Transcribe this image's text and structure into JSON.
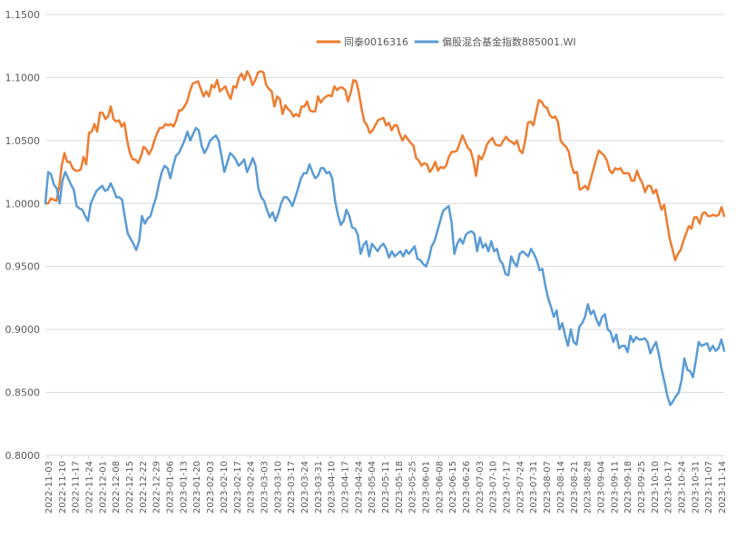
{
  "chart_data": {
    "type": "line",
    "ylim": [
      0.8,
      1.15
    ],
    "yticks": [
      "0.8000",
      "0.8500",
      "0.9000",
      "0.9500",
      "1.0000",
      "1.0500",
      "1.1000",
      "1.1500"
    ],
    "grid": true,
    "legend_position": "top-center",
    "xtick_labels": [
      "2022-11-03",
      "2022-11-10",
      "2022-11-17",
      "2022-11-24",
      "2022-12-01",
      "2022-12-08",
      "2022-12-15",
      "2022-12-22",
      "2022-12-29",
      "2023-01-06",
      "2023-01-13",
      "2023-01-20",
      "2023-02-03",
      "2023-02-10",
      "2023-02-17",
      "2023-02-24",
      "2023-03-03",
      "2023-03-10",
      "2023-03-17",
      "2023-03-24",
      "2023-03-31",
      "2023-04-10",
      "2023-04-17",
      "2023-04-24",
      "2023-05-04",
      "2023-05-11",
      "2023-05-18",
      "2023-05-25",
      "2023-06-01",
      "2023-06-08",
      "2023-06-15",
      "2023-06-26",
      "2023-07-03",
      "2023-07-10",
      "2023-07-17",
      "2023-07-24",
      "2023-07-31",
      "2023-08-07",
      "2023-08-14",
      "2023-08-21",
      "2023-08-28",
      "2023-09-04",
      "2023-09-11",
      "2023-09-18",
      "2023-09-25",
      "2023-10-10",
      "2023-10-17",
      "2023-10-24",
      "2023-10-31",
      "2023-11-07",
      "2023-11-14"
    ],
    "series": [
      {
        "name": "同泰0016316",
        "color": "#ED7D31",
        "values": [
          1.0,
          1.0,
          1.004,
          1.003,
          1.002,
          1.012,
          1.03,
          1.04,
          1.033,
          1.033,
          1.028,
          1.026,
          1.026,
          1.027,
          1.037,
          1.031,
          1.056,
          1.057,
          1.063,
          1.057,
          1.072,
          1.072,
          1.067,
          1.069,
          1.077,
          1.067,
          1.065,
          1.066,
          1.061,
          1.064,
          1.05,
          1.04,
          1.035,
          1.035,
          1.032,
          1.037,
          1.045,
          1.043,
          1.039,
          1.043,
          1.05,
          1.056,
          1.06,
          1.06,
          1.063,
          1.062,
          1.063,
          1.061,
          1.066,
          1.074,
          1.074,
          1.077,
          1.081,
          1.089,
          1.095,
          1.096,
          1.097,
          1.091,
          1.085,
          1.089,
          1.085,
          1.094,
          1.092,
          1.098,
          1.089,
          1.091,
          1.093,
          1.087,
          1.083,
          1.093,
          1.092,
          1.1,
          1.103,
          1.098,
          1.105,
          1.101,
          1.094,
          1.098,
          1.104,
          1.105,
          1.104,
          1.094,
          1.091,
          1.089,
          1.077,
          1.085,
          1.083,
          1.071,
          1.078,
          1.075,
          1.073,
          1.069,
          1.071,
          1.069,
          1.077,
          1.077,
          1.081,
          1.074,
          1.073,
          1.073,
          1.085,
          1.08,
          1.083,
          1.085,
          1.086,
          1.085,
          1.093,
          1.09,
          1.092,
          1.092,
          1.09,
          1.081,
          1.088,
          1.098,
          1.097,
          1.088,
          1.075,
          1.065,
          1.062,
          1.056,
          1.058,
          1.062,
          1.066,
          1.067,
          1.068,
          1.062,
          1.064,
          1.058,
          1.062,
          1.062,
          1.055,
          1.05,
          1.054,
          1.051,
          1.048,
          1.046,
          1.036,
          1.034,
          1.03,
          1.032,
          1.031,
          1.025,
          1.028,
          1.033,
          1.026,
          1.029,
          1.028,
          1.03,
          1.037,
          1.041,
          1.041,
          1.042,
          1.048,
          1.054,
          1.049,
          1.044,
          1.042,
          1.034,
          1.022,
          1.038,
          1.035,
          1.04,
          1.047,
          1.05,
          1.052,
          1.047,
          1.046,
          1.046,
          1.05,
          1.053,
          1.05,
          1.049,
          1.047,
          1.05,
          1.042,
          1.04,
          1.05,
          1.064,
          1.065,
          1.062,
          1.072,
          1.082,
          1.081,
          1.077,
          1.076,
          1.07,
          1.068,
          1.069,
          1.065,
          1.05,
          1.047,
          1.045,
          1.041,
          1.03,
          1.024,
          1.025,
          1.011,
          1.012,
          1.014,
          1.011,
          1.019,
          1.027,
          1.035,
          1.042,
          1.04,
          1.038,
          1.034,
          1.026,
          1.024,
          1.028,
          1.027,
          1.028,
          1.024,
          1.024,
          1.024,
          1.018,
          1.018,
          1.026,
          1.02,
          1.016,
          1.009,
          1.014,
          1.014,
          1.008,
          1.011,
          1.003,
          0.995,
          0.999,
          0.985,
          0.972,
          0.964,
          0.955,
          0.96,
          0.963,
          0.97,
          0.976,
          0.982,
          0.98,
          0.989,
          0.989,
          0.984,
          0.992,
          0.993,
          0.99,
          0.99,
          0.991,
          0.99,
          0.991,
          0.997,
          0.99
        ],
        "end_value": 0.99
      },
      {
        "name": "偏股混合基金指数885001.WI",
        "color": "#5B9BD5",
        "values": [
          1.0,
          1.025,
          1.023,
          1.015,
          1.012,
          1.0,
          1.018,
          1.025,
          1.02,
          1.015,
          1.011,
          0.998,
          0.996,
          0.995,
          0.99,
          0.986,
          1.0,
          1.005,
          1.01,
          1.012,
          1.014,
          1.01,
          1.011,
          1.016,
          1.011,
          1.005,
          1.005,
          1.003,
          0.989,
          0.976,
          0.972,
          0.968,
          0.963,
          0.97,
          0.99,
          0.984,
          0.988,
          0.99,
          0.998,
          1.005,
          1.016,
          1.025,
          1.03,
          1.028,
          1.02,
          1.03,
          1.038,
          1.04,
          1.045,
          1.05,
          1.057,
          1.05,
          1.055,
          1.06,
          1.058,
          1.046,
          1.04,
          1.044,
          1.05,
          1.052,
          1.054,
          1.05,
          1.038,
          1.025,
          1.032,
          1.04,
          1.038,
          1.035,
          1.03,
          1.032,
          1.035,
          1.025,
          1.03,
          1.036,
          1.03,
          1.012,
          1.005,
          1.002,
          0.995,
          0.989,
          0.993,
          0.986,
          0.992,
          1.0,
          1.005,
          1.005,
          1.002,
          0.998,
          1.005,
          1.012,
          1.02,
          1.024,
          1.024,
          1.031,
          1.025,
          1.02,
          1.022,
          1.028,
          1.028,
          1.024,
          1.025,
          1.02,
          1.002,
          0.991,
          0.983,
          0.986,
          0.995,
          0.99,
          0.981,
          0.98,
          0.975,
          0.96,
          0.967,
          0.97,
          0.958,
          0.968,
          0.965,
          0.962,
          0.966,
          0.968,
          0.964,
          0.957,
          0.962,
          0.958,
          0.96,
          0.962,
          0.958,
          0.963,
          0.96,
          0.963,
          0.966,
          0.956,
          0.955,
          0.952,
          0.95,
          0.956,
          0.966,
          0.97,
          0.978,
          0.986,
          0.994,
          0.996,
          0.998,
          0.985,
          0.96,
          0.968,
          0.972,
          0.968,
          0.975,
          0.977,
          0.978,
          0.976,
          0.962,
          0.973,
          0.965,
          0.968,
          0.962,
          0.97,
          0.962,
          0.964,
          0.955,
          0.952,
          0.944,
          0.943,
          0.958,
          0.953,
          0.95,
          0.96,
          0.962,
          0.96,
          0.958,
          0.964,
          0.96,
          0.955,
          0.947,
          0.948,
          0.935,
          0.925,
          0.918,
          0.91,
          0.915,
          0.9,
          0.905,
          0.895,
          0.887,
          0.9,
          0.89,
          0.888,
          0.902,
          0.905,
          0.91,
          0.92,
          0.912,
          0.915,
          0.908,
          0.903,
          0.91,
          0.912,
          0.9,
          0.898,
          0.89,
          0.896,
          0.885,
          0.887,
          0.887,
          0.882,
          0.895,
          0.89,
          0.894,
          0.892,
          0.892,
          0.893,
          0.89,
          0.881,
          0.886,
          0.89,
          0.88,
          0.868,
          0.858,
          0.847,
          0.84,
          0.843,
          0.847,
          0.85,
          0.86,
          0.877,
          0.868,
          0.867,
          0.862,
          0.875,
          0.89,
          0.887,
          0.888,
          0.889,
          0.883,
          0.887,
          0.883,
          0.885,
          0.892,
          0.883
        ],
        "end_value": 0.883
      }
    ]
  }
}
